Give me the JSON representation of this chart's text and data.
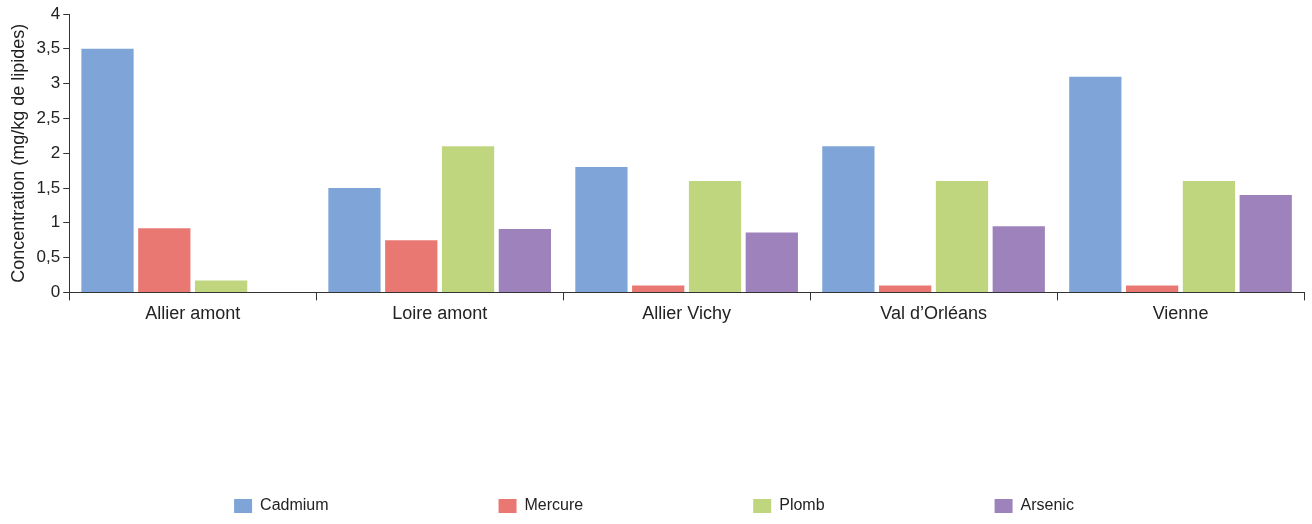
{
  "chart_data": {
    "type": "bar",
    "ylabel": "Concentration (mg/kg de lipides)",
    "categories": [
      "Allier amont",
      "Loire amont",
      "Allier Vichy",
      "Val d’Orléans",
      "Vienne"
    ],
    "series": [
      {
        "name": "Cadmium",
        "color": "#7fa5d8",
        "values": [
          3.5,
          1.5,
          1.8,
          2.1,
          3.1
        ]
      },
      {
        "name": "Mercure",
        "color": "#e97872",
        "values": [
          0.92,
          0.75,
          0.1,
          0.1,
          0.1
        ]
      },
      {
        "name": "Plomb",
        "color": "#bfd67e",
        "values": [
          0.17,
          2.1,
          1.6,
          1.6,
          1.6
        ]
      },
      {
        "name": "Arsenic",
        "color": "#9e82bb",
        "values": [
          null,
          0.91,
          0.86,
          0.95,
          1.4
        ]
      }
    ],
    "ylim": [
      0,
      4
    ],
    "yticks": [
      0,
      {
        "value": 0.5,
        "label": "0,5"
      },
      1,
      {
        "value": 1.5,
        "label": "1,5"
      },
      2,
      {
        "value": 2.5,
        "label": "2,5"
      },
      3,
      {
        "value": 3.5,
        "label": "3,5"
      },
      4
    ],
    "grid": false,
    "legend": "bottom"
  }
}
